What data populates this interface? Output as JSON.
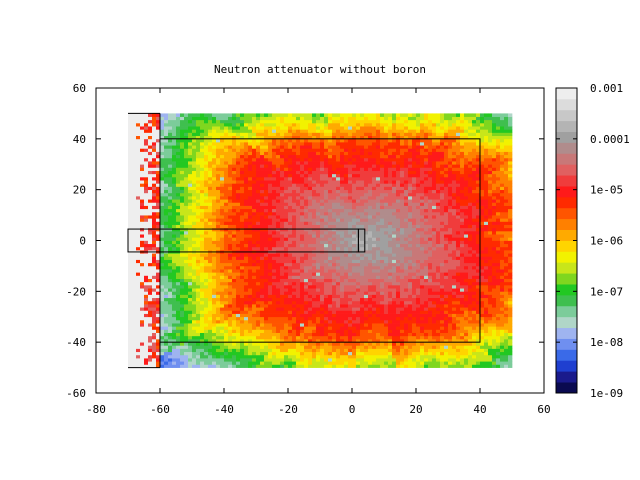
{
  "chart_data": {
    "type": "heatmap",
    "title": "Neutron attenuator without boron",
    "xlim": [
      -80,
      60
    ],
    "ylim": [
      -60,
      60
    ],
    "x_ticks": [
      "-80",
      "-60",
      "-40",
      "-20",
      "0",
      "20",
      "40",
      "60"
    ],
    "y_ticks": [
      "60",
      "40",
      "20",
      "0",
      "-20",
      "-40",
      "-60"
    ],
    "grid": false,
    "data_extent": {
      "x": [
        -70,
        50
      ],
      "y": [
        -50,
        50
      ]
    },
    "field_model": {
      "description_values": "flux falls from ~1.5e-4 near (5, 0) to ~1e-6 toward the edges, radial streaks",
      "center": [
        5,
        0
      ],
      "peak": 0.00015,
      "low_region_x_below": -60,
      "low_region_value": 0.001
    },
    "colorbar": {
      "scale": "log",
      "range": [
        1e-09,
        0.001
      ],
      "tick_labels": [
        "0.001",
        "0.0001",
        "1e-05",
        "1e-06",
        "1e-07",
        "1e-08",
        "1e-09"
      ],
      "palette": [
        "#0a0a50",
        "#1a1a8c",
        "#1f3fd0",
        "#3a6ae8",
        "#6f8ff0",
        "#9fb4f0",
        "#b0d6c8",
        "#7ccc9a",
        "#3fbf4f",
        "#22c822",
        "#7fd61f",
        "#c8e61a",
        "#f2f200",
        "#ffd400",
        "#ffaa00",
        "#ff8000",
        "#ff5500",
        "#ff2a00",
        "#ff1a1a",
        "#f03c3c",
        "#e06060",
        "#c87878",
        "#b08c8c",
        "#a0a0a0",
        "#b4b4b4",
        "#c8c8c8",
        "#dcdcdc",
        "#eeeeee"
      ]
    },
    "geometry_outlines": [
      {
        "name": "outer-box",
        "x": [
          -60,
          40
        ],
        "y": [
          -40,
          40
        ]
      },
      {
        "name": "left-wall",
        "x": [
          -60,
          -60
        ],
        "y": [
          -50,
          50
        ],
        "line": true
      },
      {
        "name": "top-wall-ext",
        "x": [
          -70,
          -60
        ],
        "y": [
          50,
          50
        ],
        "line": true
      },
      {
        "name": "bottom-wall-ext",
        "x": [
          -70,
          -60
        ],
        "y": [
          -50,
          -50
        ],
        "line": true
      },
      {
        "name": "beam-tube",
        "x": [
          -70,
          2
        ],
        "y": [
          -4.5,
          4.5
        ]
      },
      {
        "name": "target",
        "x": [
          2,
          4
        ],
        "y": [
          -4.5,
          4.5
        ]
      }
    ]
  }
}
